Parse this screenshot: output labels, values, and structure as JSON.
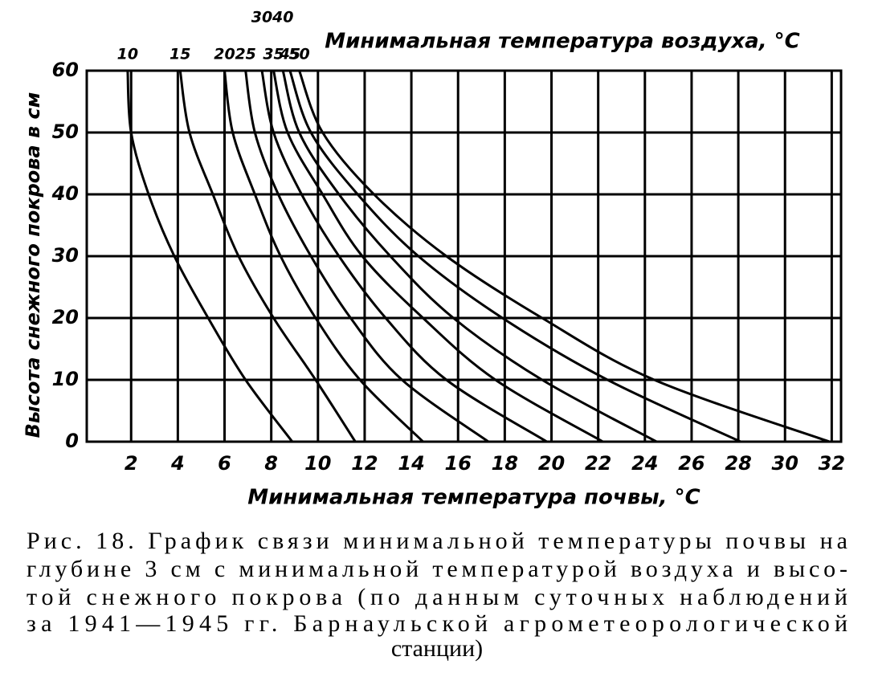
{
  "chart_data": {
    "type": "line",
    "top_axis_label": "Минимальная температура воздуха, °С",
    "x_label": "Минимальная температура почвы, °С",
    "y_label": "Высота снежного покрова в см",
    "xlim": [
      0.1,
      32.4
    ],
    "ylim": [
      0,
      60
    ],
    "xticks": [
      2,
      4,
      6,
      8,
      10,
      12,
      14,
      16,
      18,
      20,
      22,
      24,
      26,
      28,
      30,
      32
    ],
    "yticks": [
      0,
      10,
      20,
      30,
      40,
      50,
      60
    ],
    "grid": true,
    "series": [
      {
        "name": "10",
        "color": "#000000",
        "x": [
          1.85,
          2.0,
          2.75,
          3.85,
          5.3,
          6.9,
          8.9
        ],
        "values": [
          60,
          50,
          40,
          30,
          20,
          10,
          0
        ]
      },
      {
        "name": "15",
        "color": "#000000",
        "x": [
          4.1,
          4.5,
          5.5,
          6.6,
          8.1,
          9.9,
          11.6
        ],
        "values": [
          60,
          50,
          40,
          30,
          20,
          10,
          0
        ]
      },
      {
        "name": "20",
        "color": "#000000",
        "x": [
          6.0,
          6.35,
          7.3,
          8.4,
          9.9,
          11.8,
          14.5
        ],
        "values": [
          60,
          50,
          40,
          30,
          20,
          10,
          0
        ]
      },
      {
        "name": "25",
        "color": "#000000",
        "x": [
          6.9,
          7.3,
          8.3,
          9.7,
          11.4,
          13.6,
          17.3
        ],
        "values": [
          60,
          50,
          40,
          30,
          20,
          10,
          0
        ]
      },
      {
        "name": "30",
        "color": "#000000",
        "x": [
          7.6,
          8.1,
          9.3,
          10.9,
          12.9,
          15.5,
          19.8
        ],
        "values": [
          60,
          50,
          40,
          30,
          20,
          10,
          0
        ]
      },
      {
        "name": "35",
        "color": "#000000",
        "x": [
          8.1,
          8.7,
          10.2,
          11.9,
          14.5,
          17.6,
          22.2
        ],
        "values": [
          60,
          50,
          40,
          30,
          20,
          10,
          0
        ]
      },
      {
        "name": "40",
        "color": "#000000",
        "x": [
          8.5,
          9.2,
          10.9,
          13.1,
          15.8,
          19.6,
          24.5
        ],
        "values": [
          60,
          50,
          40,
          30,
          20,
          10,
          0
        ]
      },
      {
        "name": "45",
        "color": "#000000",
        "x": [
          8.8,
          9.7,
          11.7,
          14.3,
          17.9,
          22.4,
          28.1
        ],
        "values": [
          60,
          50,
          40,
          30,
          20,
          10,
          0
        ]
      },
      {
        "name": "50",
        "color": "#000000",
        "x": [
          9.2,
          10.2,
          12.4,
          15.5,
          19.6,
          24.4,
          31.9
        ],
        "values": [
          60,
          50,
          40,
          30,
          20,
          10,
          0
        ]
      }
    ]
  },
  "caption_lines": [
    "Рис. 18. График связи минимальной температуры почвы на",
    "глубине 3 см с минимальной температурой воздуха и высо-",
    "той снежного покрова (по данным суточных наблюдений",
    "за 1941—1945 гг. Барнаульской агрометеорологической",
    "станции)"
  ]
}
